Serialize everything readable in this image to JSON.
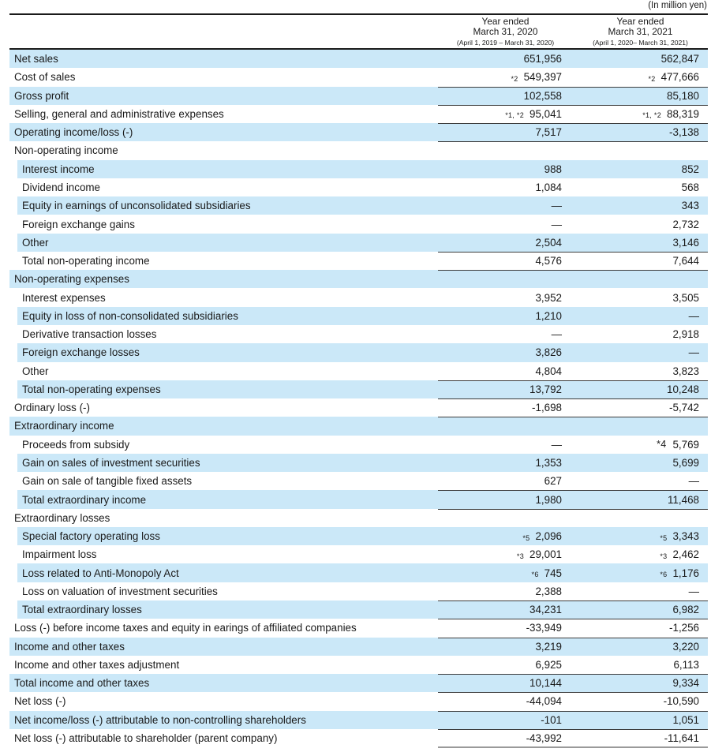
{
  "unit_note": "(In million yen)",
  "header": {
    "col_2020": {
      "line1": "Year ended",
      "line2": "March 31, 2020",
      "line3": "(April 1, 2019 – March 31, 2020)"
    },
    "col_2021": {
      "line1": "Year ended",
      "line2": "March 31, 2021",
      "line3": "(April 1, 2020– March 31, 2021)"
    }
  },
  "colors": {
    "row_highlight": "#cbe8f8",
    "heavy_rule": "#1a1a1a",
    "row_line": "#3c3c3c",
    "bottom_line": "#9a9a9a",
    "text": "#1a1a1a"
  },
  "rows": [
    {
      "label": "Net sales",
      "v1": "651,956",
      "v2": "562,847",
      "hl": true
    },
    {
      "label": "Cost of sales",
      "n1": "*2",
      "n2": "*2",
      "v1": "549,397",
      "v2": "477,666",
      "lb": true
    },
    {
      "label": "Gross profit",
      "v1": "102,558",
      "v2": "85,180",
      "hl": true,
      "lb": true
    },
    {
      "label": "Selling, general and administrative expenses",
      "n1": "*1, *2",
      "n2": "*1, *2",
      "v1": "95,041",
      "v2": "88,319",
      "lb": true
    },
    {
      "label": "Operating income/loss (-)",
      "v1": "7,517",
      "v2": "-3,138",
      "hl": true,
      "lb": true
    },
    {
      "label": "Non-operating income",
      "section": true
    },
    {
      "label": "Interest income",
      "v1": "988",
      "v2": "852",
      "hl": true,
      "ind": true
    },
    {
      "label": "Dividend income",
      "v1": "1,084",
      "v2": "568",
      "ind": true
    },
    {
      "label": "Equity in earnings of unconsolidated subsidiaries",
      "v1": "—",
      "v2": "343",
      "hl": true,
      "ind": true
    },
    {
      "label": "Foreign exchange gains",
      "v1": "—",
      "v2": "2,732",
      "ind": true
    },
    {
      "label": "Other",
      "v1": "2,504",
      "v2": "3,146",
      "hl": true,
      "ind": true,
      "lb": true
    },
    {
      "label": "Total non-operating income",
      "v1": "4,576",
      "v2": "7,644",
      "ind": true,
      "lb": true
    },
    {
      "label": "Non-operating expenses",
      "section": true,
      "hl": true
    },
    {
      "label": "Interest expenses",
      "v1": "3,952",
      "v2": "3,505",
      "ind": true
    },
    {
      "label": "Equity in loss of non-consolidated subsidiaries",
      "v1": "1,210",
      "v2": "—",
      "hl": true,
      "ind": true
    },
    {
      "label": "Derivative transaction losses",
      "v1": "—",
      "v2": "2,918",
      "ind": true
    },
    {
      "label": "Foreign exchange losses",
      "v1": "3,826",
      "v2": "—",
      "hl": true,
      "ind": true
    },
    {
      "label": "Other",
      "v1": "4,804",
      "v2": "3,823",
      "ind": true,
      "lb": true
    },
    {
      "label": "Total non-operating expenses",
      "v1": "13,792",
      "v2": "10,248",
      "hl": true,
      "ind": true,
      "lb": true
    },
    {
      "label": "Ordinary loss (-)",
      "v1": "-1,698",
      "v2": "-5,742",
      "lb": true
    },
    {
      "label": "Extraordinary income",
      "section": true,
      "hl": true
    },
    {
      "label": "Proceeds from subsidy",
      "v1": "—",
      "n2": "*4",
      "nbig": true,
      "v2": "5,769",
      "ind": true
    },
    {
      "label": "Gain on sales of investment securities",
      "v1": "1,353",
      "v2": "5,699",
      "hl": true,
      "ind": true
    },
    {
      "label": "Gain on sale of tangible fixed assets",
      "v1": "627",
      "v2": "—",
      "ind": true,
      "lb": true
    },
    {
      "label": "Total extraordinary income",
      "v1": "1,980",
      "v2": "11,468",
      "hl": true,
      "ind": true,
      "lb": true
    },
    {
      "label": "Extraordinary losses",
      "section": true
    },
    {
      "label": "Special factory operating loss",
      "n1": "*5",
      "n2": "*5",
      "v1": "2,096",
      "v2": "3,343",
      "hl": true,
      "ind": true
    },
    {
      "label": "Impairment loss",
      "n1": "*3",
      "n2": "*3",
      "v1": "29,001",
      "v2": "2,462",
      "ind": true
    },
    {
      "label": "Loss related to Anti-Monopoly Act",
      "n1": "*6",
      "n2": "*6",
      "v1": "745",
      "v2": "1,176",
      "hl": true,
      "ind": true
    },
    {
      "label": "Loss on valuation of investment securities",
      "v1": "2,388",
      "v2": "—",
      "ind": true,
      "lb": true
    },
    {
      "label": "Total extraordinary losses",
      "v1": "34,231",
      "v2": "6,982",
      "hl": true,
      "ind": true,
      "lb": true
    },
    {
      "label": "Loss (-) before income taxes and equity in earings of affiliated companies",
      "v1": "-33,949",
      "v2": "-1,256",
      "lb": true
    },
    {
      "label": "Income and other taxes",
      "v1": "3,219",
      "v2": "3,220",
      "hl": true
    },
    {
      "label": "Income and other taxes adjustment",
      "v1": "6,925",
      "v2": "6,113",
      "lb": true
    },
    {
      "label": "Total income and other taxes",
      "v1": "10,144",
      "v2": "9,334",
      "hl": true,
      "lb": true
    },
    {
      "label": "Net loss (-)",
      "v1": "-44,094",
      "v2": "-10,590",
      "lb": true
    },
    {
      "label": "Net income/loss (-) attributable to non-controlling shareholders",
      "v1": "-101",
      "v2": "1,051",
      "hl": true,
      "lb": true
    },
    {
      "label": "Net loss (-) attributable to shareholder (parent company)",
      "v1": "-43,992",
      "v2": "-11,641",
      "lb": true,
      "lbg": true
    }
  ]
}
